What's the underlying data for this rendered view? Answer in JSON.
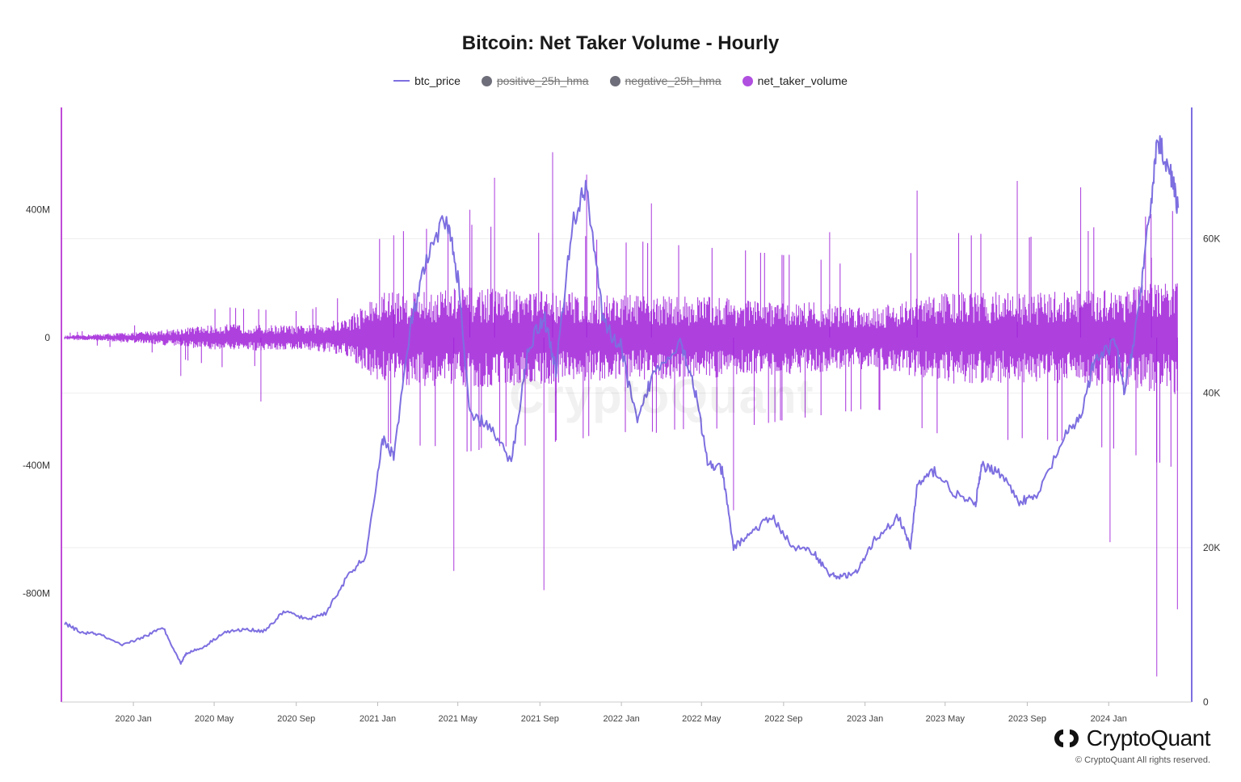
{
  "chart_data": {
    "type": "line",
    "title": "Bitcoin: Net Taker Volume - Hourly",
    "legend": [
      {
        "name": "btc_price",
        "marker": "line",
        "color": "#7d6fe0",
        "enabled": true
      },
      {
        "name": "positive_25h_hma",
        "marker": "dot",
        "color": "#6e6e7a",
        "enabled": false
      },
      {
        "name": "negative_25h_hma",
        "marker": "dot",
        "color": "#6e6e7a",
        "enabled": false
      },
      {
        "name": "net_taker_volume",
        "marker": "dot",
        "color": "#b04fe0",
        "enabled": true
      }
    ],
    "left_axis": {
      "ticks": [
        "400M",
        "0",
        "-400M",
        "-800M"
      ],
      "tick_values": [
        400,
        0,
        -400,
        -800
      ],
      "range": [
        -1140,
        720
      ],
      "unit": "M"
    },
    "right_axis": {
      "ticks": [
        "60K",
        "40K",
        "20K",
        "0"
      ],
      "tick_values": [
        60000,
        40000,
        20000,
        0
      ],
      "range": [
        0,
        77000
      ]
    },
    "x_axis": {
      "ticks": [
        "2020 Jan",
        "2020 May",
        "2020 Sep",
        "2021 Jan",
        "2021 May",
        "2021 Sep",
        "2022 Jan",
        "2022 May",
        "2022 Sep",
        "2023 Jan",
        "2023 May",
        "2023 Sep",
        "2024 Jan"
      ],
      "range": [
        "2019-09-20",
        "2024-04-15"
      ]
    },
    "series": [
      {
        "name": "btc_price",
        "axis": "right",
        "color": "#7d6fe0",
        "x": [
          "2019-09-20",
          "2019-10-15",
          "2019-11-10",
          "2019-12-15",
          "2020-01-15",
          "2020-02-15",
          "2020-03-12",
          "2020-03-20",
          "2020-04-15",
          "2020-05-15",
          "2020-06-15",
          "2020-07-15",
          "2020-08-15",
          "2020-09-15",
          "2020-10-15",
          "2020-11-15",
          "2020-12-15",
          "2021-01-08",
          "2021-01-25",
          "2021-02-20",
          "2021-03-15",
          "2021-04-14",
          "2021-05-01",
          "2021-05-19",
          "2021-06-15",
          "2021-07-20",
          "2021-08-15",
          "2021-09-07",
          "2021-09-25",
          "2021-10-20",
          "2021-11-10",
          "2021-12-05",
          "2021-12-31",
          "2022-01-25",
          "2022-02-15",
          "2022-03-30",
          "2022-04-20",
          "2022-05-10",
          "2022-06-01",
          "2022-06-18",
          "2022-07-15",
          "2022-08-15",
          "2022-09-15",
          "2022-10-15",
          "2022-11-09",
          "2022-11-25",
          "2022-12-20",
          "2023-01-15",
          "2023-02-20",
          "2023-03-10",
          "2023-03-20",
          "2023-04-15",
          "2023-05-15",
          "2023-06-15",
          "2023-06-25",
          "2023-07-20",
          "2023-08-20",
          "2023-09-15",
          "2023-10-25",
          "2023-11-20",
          "2023-12-10",
          "2024-01-11",
          "2024-01-25",
          "2024-02-15",
          "2024-03-01",
          "2024-03-14",
          "2024-04-01",
          "2024-04-14"
        ],
        "values": [
          10200,
          9000,
          8800,
          7300,
          8400,
          9600,
          5000,
          6300,
          7100,
          9000,
          9400,
          9200,
          11800,
          10700,
          11500,
          16000,
          19000,
          34000,
          32000,
          49000,
          57000,
          63000,
          55000,
          37000,
          36000,
          31000,
          46000,
          50000,
          43000,
          62000,
          67000,
          49000,
          46000,
          36000,
          42000,
          47000,
          41000,
          31000,
          30000,
          20000,
          22000,
          24000,
          20000,
          19500,
          16500,
          16200,
          16800,
          21000,
          24000,
          20000,
          28000,
          30000,
          27000,
          25500,
          30500,
          30000,
          26000,
          26500,
          34000,
          37000,
          44000,
          46500,
          40000,
          51000,
          62000,
          73000,
          69000,
          64000
        ]
      },
      {
        "name": "net_taker_volume",
        "axis": "left",
        "color": "#a020d8",
        "unit": "M",
        "envelope_x": [
          "2019-09-20",
          "2020-01-15",
          "2020-05-15",
          "2020-09-15",
          "2020-11-15",
          "2021-01-08",
          "2021-05-19",
          "2021-09-15",
          "2022-01-15",
          "2022-05-10",
          "2022-09-15",
          "2023-01-15",
          "2023-05-15",
          "2023-09-15",
          "2024-01-15",
          "2024-04-14"
        ],
        "envelope_values": [
          5,
          15,
          35,
          30,
          50,
          120,
          130,
          120,
          110,
          105,
          95,
          80,
          120,
          115,
          130,
          150
        ],
        "spikes": [
          {
            "x": "2020-03-12",
            "value": -120
          },
          {
            "x": "2020-07-10",
            "value": -200
          },
          {
            "x": "2021-01-25",
            "value": 320
          },
          {
            "x": "2021-04-25",
            "value": -730
          },
          {
            "x": "2021-05-19",
            "value": 400
          },
          {
            "x": "2021-06-25",
            "value": 500
          },
          {
            "x": "2021-09-07",
            "value": -790
          },
          {
            "x": "2021-09-20",
            "value": 580
          },
          {
            "x": "2021-11-10",
            "value": 510
          },
          {
            "x": "2022-02-15",
            "value": 420
          },
          {
            "x": "2022-06-18",
            "value": -540
          },
          {
            "x": "2022-11-09",
            "value": 330
          },
          {
            "x": "2023-03-20",
            "value": 460
          },
          {
            "x": "2023-08-17",
            "value": 490
          },
          {
            "x": "2023-11-20",
            "value": 470
          },
          {
            "x": "2024-01-03",
            "value": -640
          },
          {
            "x": "2024-03-05",
            "value": 250
          },
          {
            "x": "2024-03-13",
            "value": -1060
          },
          {
            "x": "2024-04-13",
            "value": -850
          }
        ]
      }
    ]
  },
  "watermark": "CryptoQuant",
  "brand": {
    "name": "CryptoQuant",
    "copyright": "© CryptoQuant All rights reserved."
  }
}
